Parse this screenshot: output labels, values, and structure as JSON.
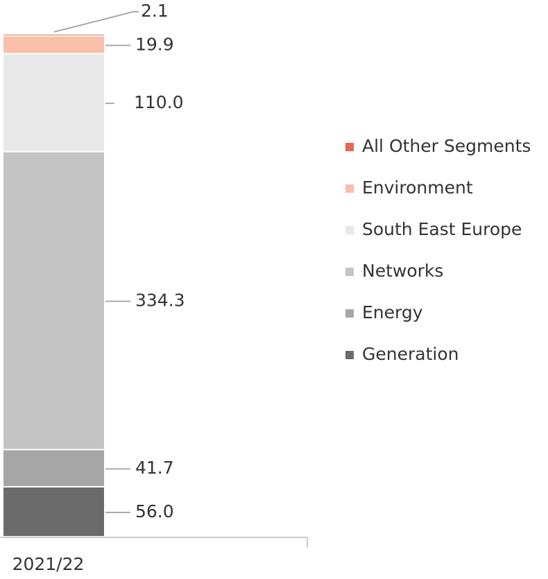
{
  "chart_data": {
    "type": "stacked-bar",
    "categories": [
      "2021/22"
    ],
    "series": [
      {
        "name": "Generation",
        "color": "#6b6b6b",
        "values": [
          56.0
        ],
        "value_labels": [
          "56.0"
        ]
      },
      {
        "name": "Energy",
        "color": "#a6a6a6",
        "values": [
          41.7
        ],
        "value_labels": [
          "41.7"
        ]
      },
      {
        "name": "Networks",
        "color": "#c4c4c4",
        "values": [
          334.3
        ],
        "value_labels": [
          "334.3"
        ]
      },
      {
        "name": "South East Europe",
        "color": "#e8e8e8",
        "values": [
          110.0
        ],
        "value_labels": [
          "110.0"
        ]
      },
      {
        "name": "Environment",
        "color": "#f9bfa8",
        "values": [
          19.9
        ],
        "value_labels": [
          "19.9"
        ]
      },
      {
        "name": "All Other Segments",
        "color": "#e8654f",
        "values": [
          2.1
        ],
        "value_labels": [
          "2.1"
        ]
      }
    ]
  }
}
